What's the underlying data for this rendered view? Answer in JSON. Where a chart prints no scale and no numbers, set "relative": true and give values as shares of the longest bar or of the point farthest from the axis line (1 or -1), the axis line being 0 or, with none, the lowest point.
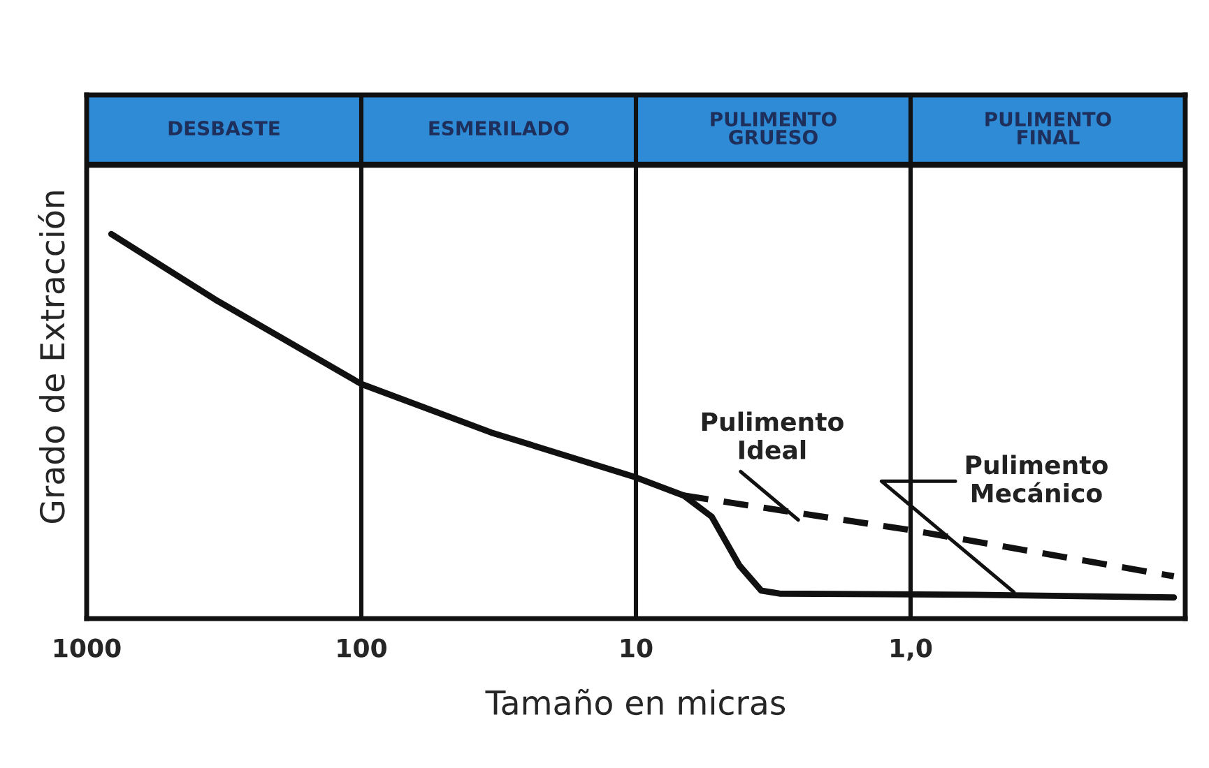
{
  "chart_data": {
    "type": "line",
    "relative": true,
    "xlabel": "Tamaño en micras",
    "ylabel": "Grado de Extracción",
    "log": "x",
    "xlim": [
      1000,
      0.1
    ],
    "xticks": [
      1000,
      100,
      10,
      {
        "value": 1,
        "label": "1,0"
      }
    ],
    "grid": "x",
    "series": [
      {
        "color": "#111111",
        "line_style": "solid",
        "x": [
          813,
          341,
          100,
          33.7,
          10,
          6.7,
          5.3,
          4.2,
          3.5,
          3.0,
          0.59,
          0.11
        ],
        "values": [
          1.0,
          0.83,
          0.61,
          0.484,
          0.367,
          0.32,
          0.265,
          0.138,
          0.073,
          0.065,
          0.062,
          0.055
        ]
      },
      {
        "color": "#111111",
        "line_style": "dashed",
        "x": [
          6.7,
          1.0,
          0.11
        ],
        "values": [
          0.32,
          0.23,
          0.11
        ]
      }
    ],
    "annotations": [
      "DESBASTE",
      "ESMERILADO",
      "PULIMENTO\nGRUESO",
      "PULIMENTO\nFINAL",
      {
        "text": "Pulimento\nIdeal",
        "x": 2.5,
        "y": 0.25
      },
      {
        "text": "Pulimento\nMecánico",
        "x": 0.41,
        "y": 0.062
      }
    ]
  }
}
